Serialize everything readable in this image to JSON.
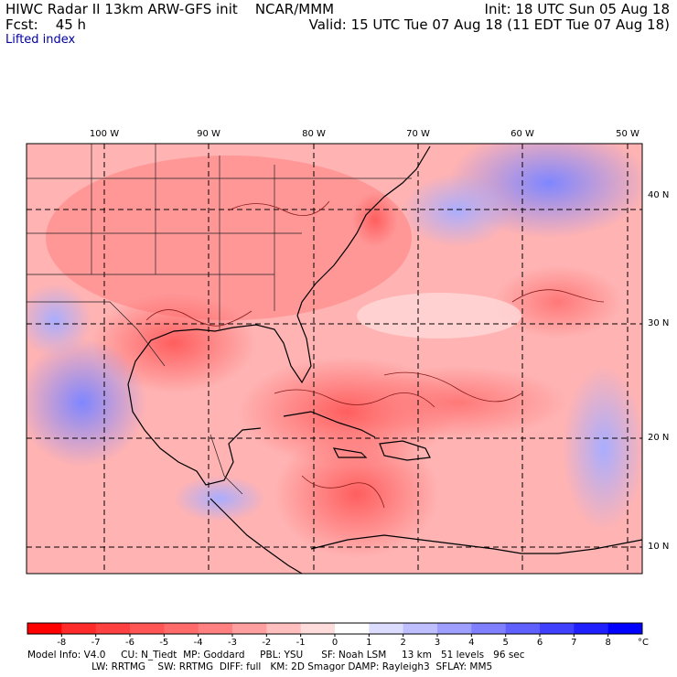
{
  "header": {
    "title": "HIWC Radar II 13km ARW-GFS init",
    "org": "NCAR/MMM",
    "fcst_label": "Fcst:",
    "fcst_value": "45 h",
    "init": "Init: 18 UTC Sun 05 Aug 18",
    "valid": "Valid: 15 UTC Tue 07 Aug 18 (11 EDT Tue 07 Aug 18)"
  },
  "field_name": "Lifted index",
  "map": {
    "lon_labels": [
      "100 W",
      "90 W",
      "80 W",
      "70 W",
      "60 W",
      "50 W"
    ],
    "lat_labels": [
      "40 N",
      "30 N",
      "20 N",
      "10 N"
    ]
  },
  "colorbar": {
    "labels": [
      "-8",
      "-7",
      "-6",
      "-5",
      "-4",
      "-3",
      "-2",
      "-1",
      "0",
      "1",
      "2",
      "3",
      "4",
      "5",
      "6",
      "7",
      "8"
    ],
    "unit": "°C",
    "colors": [
      "#ff0000",
      "#ff2a2a",
      "#ff4040",
      "#ff5555",
      "#ff6a6a",
      "#ff8080",
      "#ff9f9f",
      "#ffbfbf",
      "#ffdcdc",
      "#ffffff",
      "#dcdcff",
      "#bfbfff",
      "#9f9fff",
      "#8080ff",
      "#6060ff",
      "#4040ff",
      "#2020ff",
      "#0000ff"
    ]
  },
  "model_info": {
    "line1": "Model Info: V4.0     CU: N_Tiedt  MP: Goddard     PBL: YSU      SF: Noah LSM     13 km   51 levels   96 sec",
    "line2": "                     LW: RRTMG    SW: RRTMG  DIFF: full   KM: 2D Smagor DAMP: Rayleigh3  SFLAY: MM5"
  }
}
